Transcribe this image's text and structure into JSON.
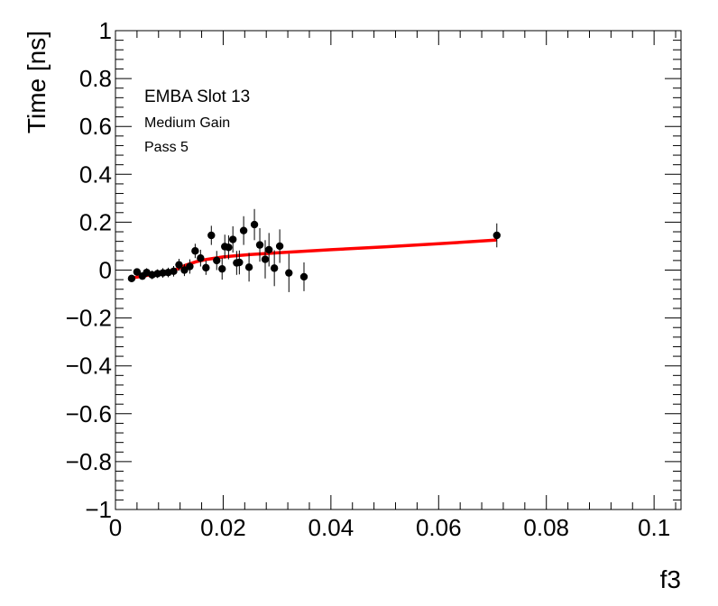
{
  "chart_data": {
    "type": "scatter",
    "title": "",
    "xlabel": "f3",
    "ylabel": "Time [ns]",
    "xlim": [
      0,
      0.105
    ],
    "ylim": [
      -1,
      1
    ],
    "x_ticks": [
      0,
      0.02,
      0.04,
      0.06,
      0.08,
      0.1
    ],
    "x_tick_labels": [
      "0",
      "0.02",
      "0.04",
      "0.06",
      "0.08",
      "0.1"
    ],
    "y_ticks": [
      -1,
      -0.8,
      -0.6,
      -0.4,
      -0.2,
      0,
      0.2,
      0.4,
      0.6,
      0.8,
      1
    ],
    "y_tick_labels": [
      "−1",
      "−0.8",
      "−0.6",
      "−0.4",
      "−0.2",
      "0",
      "0.2",
      "0.4",
      "0.6",
      "0.8",
      "1"
    ],
    "grid": false,
    "annotations": [
      "EMBA Slot 13",
      "Medium Gain",
      "Pass 5"
    ],
    "series": [
      {
        "type": "errorbar",
        "color": "#000000",
        "points": [
          {
            "x": 0.003,
            "y": -0.035,
            "err": 0.015
          },
          {
            "x": 0.004,
            "y": -0.008,
            "err": 0.015
          },
          {
            "x": 0.005,
            "y": -0.025,
            "err": 0.015
          },
          {
            "x": 0.0058,
            "y": -0.01,
            "err": 0.018
          },
          {
            "x": 0.0068,
            "y": -0.02,
            "err": 0.018
          },
          {
            "x": 0.0078,
            "y": -0.015,
            "err": 0.018
          },
          {
            "x": 0.0088,
            "y": -0.012,
            "err": 0.02
          },
          {
            "x": 0.0098,
            "y": -0.01,
            "err": 0.02
          },
          {
            "x": 0.0108,
            "y": -0.005,
            "err": 0.022
          },
          {
            "x": 0.0118,
            "y": 0.022,
            "err": 0.025
          },
          {
            "x": 0.0128,
            "y": 0.0,
            "err": 0.025
          },
          {
            "x": 0.0138,
            "y": 0.015,
            "err": 0.03
          },
          {
            "x": 0.0148,
            "y": 0.08,
            "err": 0.03
          },
          {
            "x": 0.0158,
            "y": 0.05,
            "err": 0.035
          },
          {
            "x": 0.0168,
            "y": 0.01,
            "err": 0.03
          },
          {
            "x": 0.0178,
            "y": 0.145,
            "err": 0.04
          },
          {
            "x": 0.0188,
            "y": 0.04,
            "err": 0.04
          },
          {
            "x": 0.0198,
            "y": 0.005,
            "err": 0.045
          },
          {
            "x": 0.0203,
            "y": 0.098,
            "err": 0.05
          },
          {
            "x": 0.021,
            "y": 0.095,
            "err": 0.05
          },
          {
            "x": 0.0218,
            "y": 0.128,
            "err": 0.055
          },
          {
            "x": 0.0225,
            "y": 0.03,
            "err": 0.05
          },
          {
            "x": 0.023,
            "y": 0.032,
            "err": 0.05
          },
          {
            "x": 0.0238,
            "y": 0.165,
            "err": 0.06
          },
          {
            "x": 0.0248,
            "y": 0.012,
            "err": 0.06
          },
          {
            "x": 0.0258,
            "y": 0.19,
            "err": 0.065
          },
          {
            "x": 0.0268,
            "y": 0.105,
            "err": 0.07
          },
          {
            "x": 0.0278,
            "y": 0.045,
            "err": 0.08
          },
          {
            "x": 0.0285,
            "y": 0.085,
            "err": 0.07
          },
          {
            "x": 0.0295,
            "y": 0.008,
            "err": 0.075
          },
          {
            "x": 0.0305,
            "y": 0.1,
            "err": 0.07
          },
          {
            "x": 0.0322,
            "y": -0.012,
            "err": 0.08
          },
          {
            "x": 0.035,
            "y": -0.028,
            "err": 0.06
          },
          {
            "x": 0.0708,
            "y": 0.145,
            "err": 0.05
          }
        ]
      },
      {
        "type": "line",
        "color": "#ff0000",
        "x": [
          0.003,
          0.006,
          0.009,
          0.011,
          0.013,
          0.015,
          0.017,
          0.02,
          0.025,
          0.03,
          0.04,
          0.05,
          0.06,
          0.0705
        ],
        "y": [
          -0.033,
          -0.022,
          -0.012,
          0.0,
          0.02,
          0.035,
          0.045,
          0.055,
          0.065,
          0.072,
          0.085,
          0.097,
          0.11,
          0.125
        ]
      }
    ]
  }
}
